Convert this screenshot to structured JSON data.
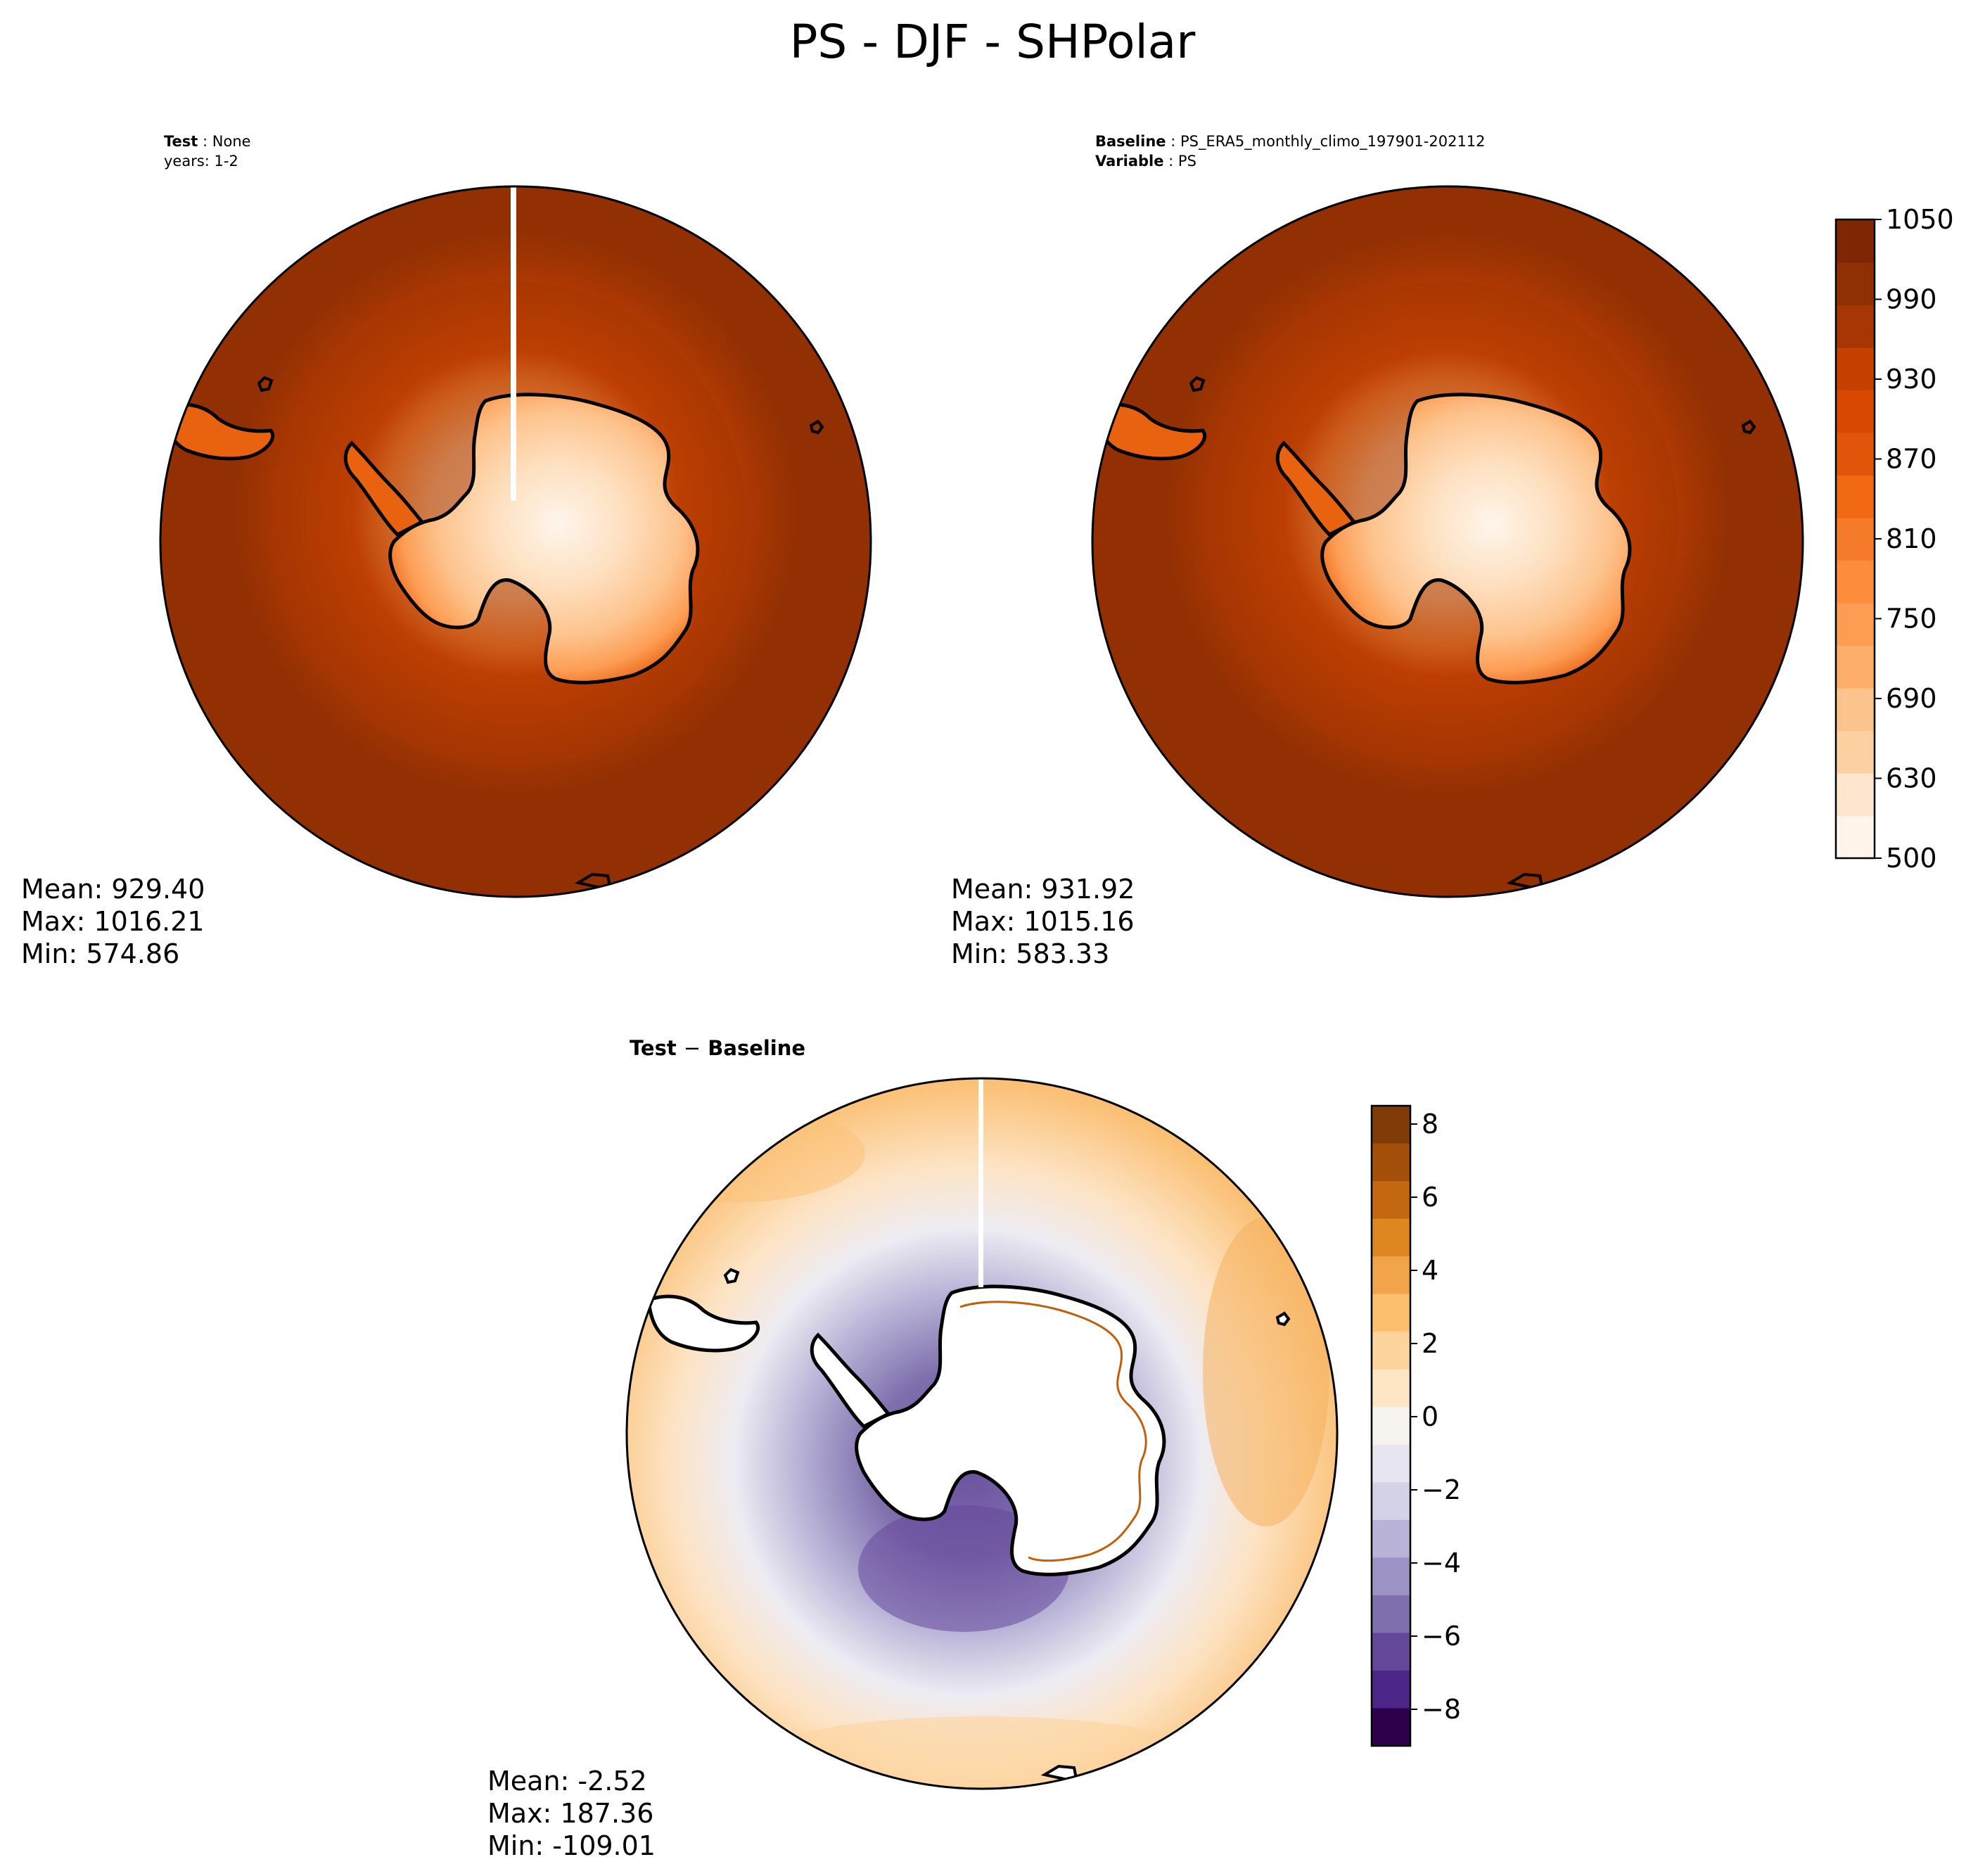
{
  "figure": {
    "title": "PS - DJF - SHPolar"
  },
  "panels": {
    "test": {
      "label_key": "Test",
      "label_value": "None",
      "years_line": "years: 1-2",
      "stats": {
        "mean": "Mean: 929.40",
        "max": "Max: 1016.21",
        "min": "Min: 574.86"
      }
    },
    "baseline": {
      "label_key": "Baseline",
      "label_value": "PS_ERA5_monthly_climo_197901-202112",
      "variable_key": "Variable",
      "variable_value": "PS",
      "stats": {
        "mean": "Mean: 931.92",
        "max": "Max: 1015.16",
        "min": "Min: 583.33"
      }
    },
    "diff": {
      "label_left": "Test",
      "label_sep": "−",
      "label_right": "Baseline",
      "stats": {
        "mean": "Mean: -2.52",
        "max": "Max: 187.36",
        "min": "Min: -109.01"
      }
    }
  },
  "chart_data": [
    {
      "type": "heatmap",
      "projection": "south-polar-stereographic",
      "panel": "test",
      "field": "PS",
      "season": "DJF",
      "mean": 929.4,
      "max": 1016.21,
      "min": 574.86,
      "colormap": "Oranges",
      "levels": [
        500,
        630,
        690,
        750,
        810,
        870,
        930,
        990,
        1050
      ]
    },
    {
      "type": "heatmap",
      "projection": "south-polar-stereographic",
      "panel": "baseline",
      "field": "PS",
      "season": "DJF",
      "mean": 931.92,
      "max": 1015.16,
      "min": 583.33,
      "colormap": "Oranges",
      "levels": [
        500,
        630,
        690,
        750,
        810,
        870,
        930,
        990,
        1050
      ]
    },
    {
      "type": "heatmap",
      "projection": "south-polar-stereographic",
      "panel": "test-minus-baseline",
      "field": "PS",
      "season": "DJF",
      "mean": -2.52,
      "max": 187.36,
      "min": -109.01,
      "colormap": "PuOr_r",
      "ylim": [
        -9,
        8.5
      ]
    }
  ],
  "colorbars": {
    "main": {
      "ticks": [
        "500",
        "630",
        "690",
        "750",
        "810",
        "870",
        "930",
        "990",
        "1050"
      ],
      "colors": [
        "#fff5eb",
        "#fee6ce",
        "#fdd0a2",
        "#fdc38d",
        "#fdae6b",
        "#fd9d54",
        "#fd8d3c",
        "#f57a2a",
        "#f16913",
        "#e05509",
        "#d94801",
        "#c54102",
        "#a63603",
        "#8f3003",
        "#7f2704"
      ]
    },
    "diff": {
      "ticks": [
        "8",
        "6",
        "4",
        "2",
        "0",
        "−2",
        "−4",
        "−6",
        "−8"
      ],
      "tick_values": [
        8,
        6,
        4,
        2,
        0,
        -2,
        -4,
        -6,
        -8
      ],
      "range": [
        -9,
        8.5
      ],
      "colors": [
        "#7f3b08",
        "#a4500a",
        "#c36811",
        "#de861f",
        "#f1a44a",
        "#fbbf6e",
        "#fdd49c",
        "#fee6c4",
        "#f7f4ef",
        "#e7e6f0",
        "#d3d2e7",
        "#b9b4d7",
        "#9c92c3",
        "#7f6fad",
        "#65479a",
        "#4c2588",
        "#2d004b"
      ]
    }
  },
  "colors": {
    "ocean_outer": "#933003",
    "ocean_inner": "#a63603",
    "coast": "#000000",
    "gap": "#ffffff"
  }
}
